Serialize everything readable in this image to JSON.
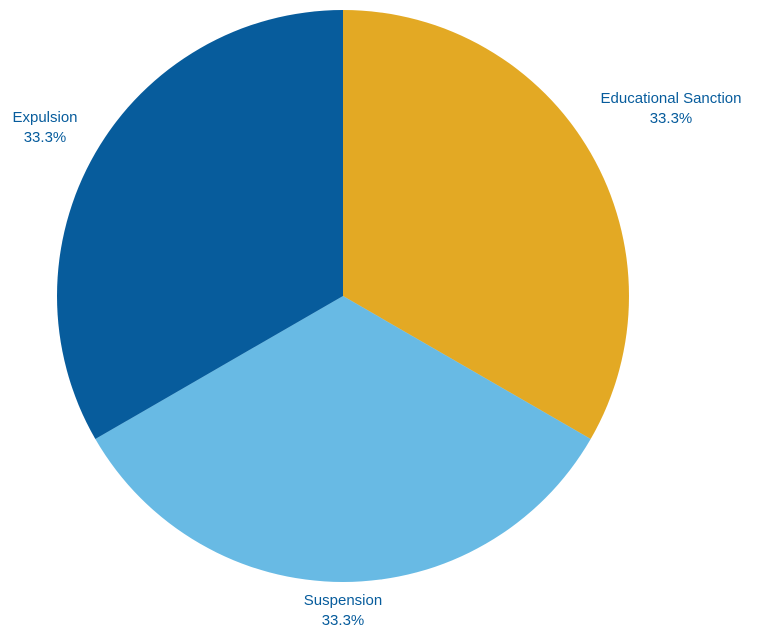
{
  "chart_data": {
    "type": "pie",
    "title": "",
    "slices": [
      {
        "label": "Educational Sanction",
        "value": 33.3,
        "display": "33.3%",
        "color": "#E3A924"
      },
      {
        "label": "Suspension",
        "value": 33.3,
        "display": "33.3%",
        "color": "#68BAE4"
      },
      {
        "label": "Expulsion",
        "value": 33.3,
        "display": "33.3%",
        "color": "#075C9C"
      }
    ],
    "start_angle_deg": 0,
    "direction": "clockwise",
    "label_color": "#075C9C",
    "legend": "none"
  }
}
